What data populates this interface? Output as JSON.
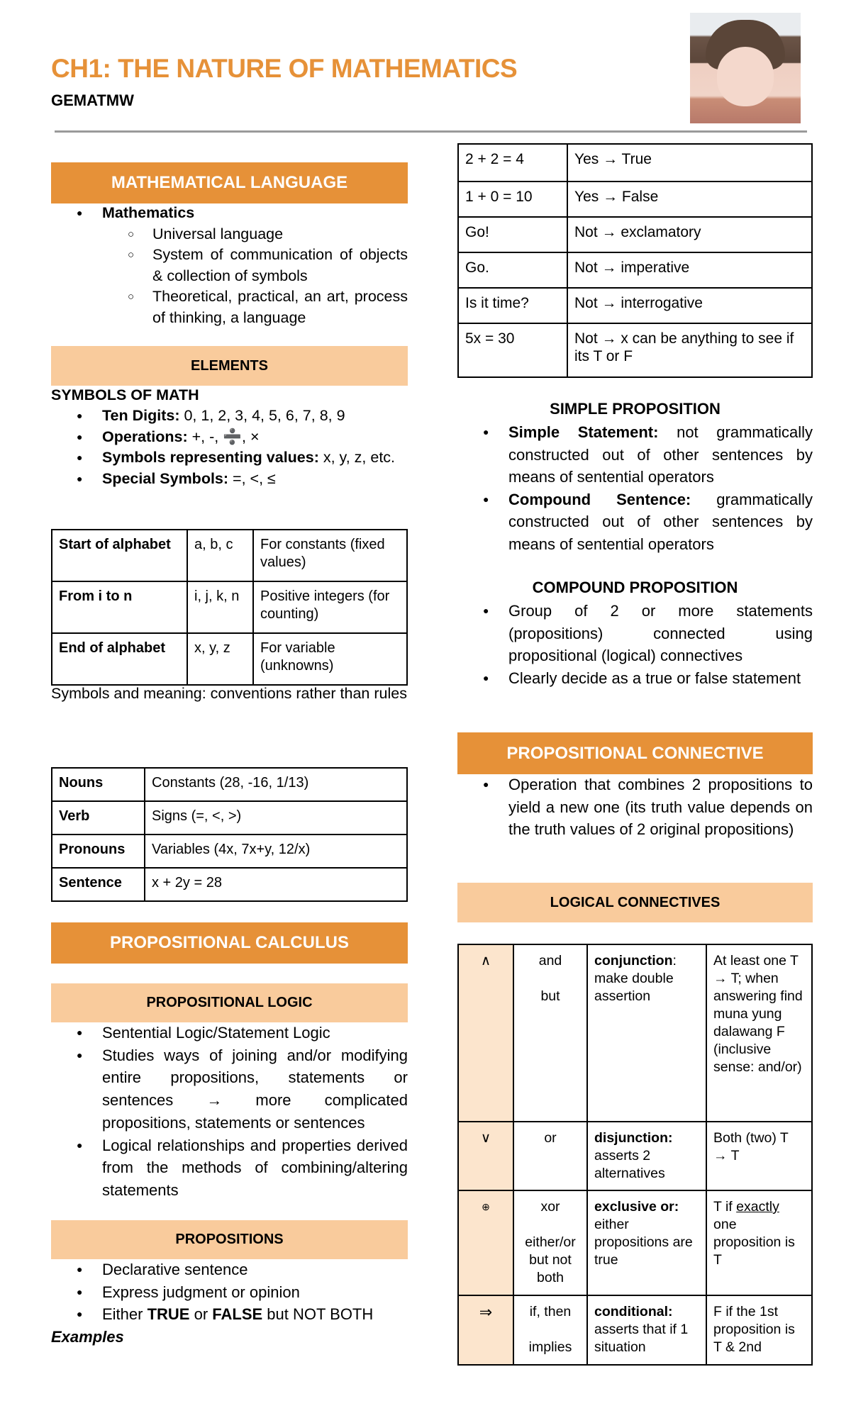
{
  "header": {
    "title": "CH1: THE NATURE OF MATHEMATICS",
    "subtitle": "GEMATMW"
  },
  "colors": {
    "accent": "#E69138",
    "accent_light": "#F9CB9C",
    "table_symbol_bg": "#FCE5CD"
  },
  "math_language": {
    "heading": "MATHEMATICAL LANGUAGE",
    "bullet": "Mathematics",
    "sub": [
      "Universal language",
      "System of communication of objects & collection of symbols",
      "Theoretical, practical, an art, process of thinking, a language"
    ]
  },
  "elements": {
    "heading": "ELEMENTS",
    "symbols_title": "SYMBOLS OF MATH",
    "items": [
      {
        "label": "Ten Digits:",
        "value": " 0, 1, 2, 3, 4, 5, 6, 7, 8, 9"
      },
      {
        "label": "Operations:",
        "value": " +, -, ➗, ×"
      },
      {
        "label": "Symbols representing values:",
        "value": " x, y, z, etc."
      },
      {
        "label": "Special Symbols:",
        "value": " =, <, ≤"
      }
    ],
    "table1": [
      [
        "Start of alphabet",
        "a, b, c",
        "For constants (fixed values)"
      ],
      [
        "From i to n",
        "i, j, k, n",
        "Positive integers (for counting)"
      ],
      [
        "End of alphabet",
        "x, y, z",
        "For variable (unknowns)"
      ]
    ],
    "note": "Symbols and meaning: conventions rather than rules",
    "table2": [
      [
        "Nouns",
        "Constants (28, -16, 1/13)"
      ],
      [
        "Verb",
        "Signs (=, <, >)"
      ],
      [
        "Pronouns",
        "Variables (4x, 7x+y, 12/x)"
      ],
      [
        "Sentence",
        "x + 2y = 28"
      ]
    ]
  },
  "prop_calculus": {
    "heading": "PROPOSITIONAL CALCULUS",
    "logic_heading": "PROPOSITIONAL LOGIC",
    "logic_items": [
      "Sentential Logic/Statement Logic",
      "Studies ways of joining and/or modifying entire propositions, statements or sentences → more complicated propositions, statements or sentences",
      "Logical relationships and properties derived from the methods of combining/altering statements"
    ],
    "propositions_heading": "PROPOSITIONS",
    "prop_items": [
      "Declarative sentence",
      "Express judgment or opinion"
    ],
    "prop_item3": {
      "a": "Either ",
      "b": "TRUE",
      "c": " or ",
      "d": "FALSE",
      "e": " but NOT BOTH"
    },
    "examples": "Examples"
  },
  "examples_table": [
    [
      "2 + 2 = 4",
      "Yes → True"
    ],
    [
      "1 + 0 = 10",
      "Yes → False"
    ],
    [
      "Go!",
      "Not → exclamatory"
    ],
    [
      "Go.",
      "Not → imperative"
    ],
    [
      "Is it time?",
      "Not → interrogative"
    ],
    [
      "5x = 30",
      "Not → x can be anything to see if its T or F"
    ]
  ],
  "simple": {
    "heading": "SIMPLE PROPOSITION",
    "items": [
      {
        "label": "Simple Statement:",
        "text": " not grammatically constructed out of other sentences by means of sentential operators"
      },
      {
        "label": "Compound Sentence:",
        "text": " grammatically constructed out of other sentences by means of sentential operators"
      }
    ]
  },
  "compound": {
    "heading": "COMPOUND PROPOSITION",
    "items": [
      "Group of 2 or more statements (propositions) connected using propositional (logical) connectives",
      "Clearly decide as a true or false statement"
    ]
  },
  "connective": {
    "heading": "PROPOSITIONAL CONNECTIVE",
    "items": [
      "Operation that combines 2 propositions to yield a new one (its truth value depends on the truth values of 2 original propositions)"
    ]
  },
  "logical": {
    "heading": "LOGICAL CONNECTIVES",
    "rows": [
      {
        "symbol": "∧",
        "words": [
          "and",
          "but"
        ],
        "name": "conjunction",
        "name_suffix": ":",
        "desc": "make double assertion",
        "rule": "At least one T → T; when answering find muna yung dalawang F (inclusive sense: and/or)"
      },
      {
        "symbol": "∨",
        "words": [
          "or"
        ],
        "name": "disjunction:",
        "name_suffix": "",
        "desc": "asserts 2 alternatives",
        "rule": "Both (two) T → T"
      },
      {
        "symbol": "⊕",
        "words": [
          "xor",
          "either/or but not both"
        ],
        "name": "exclusive or:",
        "name_suffix": "",
        "desc": "either propositions are true",
        "rule_a": "T if ",
        "rule_u": "exactly",
        "rule_b": " one proposition is T"
      },
      {
        "symbol": "⇒",
        "words": [
          "if, then",
          "implies"
        ],
        "name": "conditional:",
        "name_suffix": "",
        "desc": "asserts that if 1 situation",
        "rule": "F if the 1st proposition is T & 2nd"
      }
    ]
  }
}
